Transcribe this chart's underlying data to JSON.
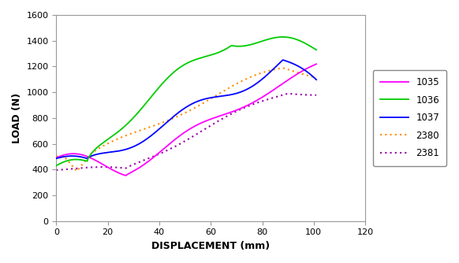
{
  "xlabel": "DISPLACEMENT (mm)",
  "ylabel": "LOAD (N)",
  "xlim": [
    0,
    120
  ],
  "ylim": [
    0,
    1600
  ],
  "xticks": [
    0,
    20,
    40,
    60,
    80,
    100,
    120
  ],
  "yticks": [
    0,
    200,
    400,
    600,
    800,
    1000,
    1200,
    1400,
    1600
  ],
  "legend_labels": [
    "1035",
    "1036",
    "1037",
    "2380",
    "2381"
  ],
  "colors": {
    "1035": "#FF00FF",
    "1036": "#00CC00",
    "1037": "#0000FF",
    "2380": "#FF8C00",
    "2381": "#9900AA"
  },
  "background_color": "#FFFFFF"
}
